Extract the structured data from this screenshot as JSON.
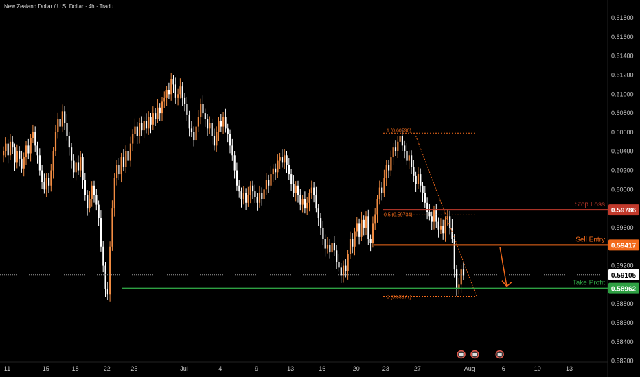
{
  "title": "New Zealand Dollar / U.S. Dollar · 4h · Tradu",
  "colors": {
    "background": "#000000",
    "candle_up": "#f28c42",
    "candle_down": "#ffffff",
    "stop_loss": "#c0392b",
    "sell_entry": "#f26a1b",
    "take_profit": "#2ea043",
    "fib": "#f26a1b",
    "current_price": "#9a9a9a"
  },
  "y_axis": {
    "ticks": [
      "0.61800",
      "0.61600",
      "0.61400",
      "0.61200",
      "0.61000",
      "0.60800",
      "0.60600",
      "0.60400",
      "0.60200",
      "0.60000",
      "0.59600",
      "0.59200",
      "0.58800",
      "0.58600",
      "0.58400",
      "0.58200"
    ],
    "tick_values": [
      0.618,
      0.616,
      0.614,
      0.612,
      0.61,
      0.608,
      0.606,
      0.604,
      0.602,
      0.6,
      0.596,
      0.592,
      0.588,
      0.586,
      0.584,
      0.582
    ],
    "range": [
      0.5819,
      0.6193
    ]
  },
  "x_axis": {
    "labels": [
      "11",
      "15",
      "18",
      "22",
      "25",
      "Jul",
      "4",
      "9",
      "13",
      "16",
      "20",
      "23",
      "27",
      "Aug",
      "6",
      "10",
      "13"
    ],
    "label_index": [
      2,
      19,
      32,
      46,
      58,
      80,
      96,
      112,
      127,
      141,
      156,
      169,
      183,
      206,
      221,
      236,
      250
    ]
  },
  "levels": {
    "stop_loss": {
      "label": "Stop Loss",
      "value": "0.59786",
      "price": 0.59786
    },
    "sell_entry": {
      "label": "Sell Entry",
      "value": "0.59417",
      "price": 0.59417
    },
    "take_profit": {
      "label": "Take Profit",
      "value": "0.58962",
      "price": 0.58962
    },
    "current_price": {
      "value": "0.59105",
      "price": 0.59105
    }
  },
  "fib": {
    "level_1": {
      "label": "1 (0.60590)",
      "price": 0.6059
    },
    "level_05": {
      "label": "0.5 (0.59734)",
      "price": 0.59734
    },
    "level_0": {
      "label": "0 (0.58877)",
      "price": 0.58877
    }
  },
  "events": {
    "icons": [
      "calendar-event-icon",
      "calendar-event-icon",
      "calendar-event-icon"
    ],
    "index": [
      202,
      208,
      219
    ]
  },
  "chart_data": {
    "type": "candlestick",
    "title": "New Zealand Dollar / U.S. Dollar · 4h · Tradu",
    "x_labels": [
      "11",
      "15",
      "18",
      "22",
      "25",
      "Jul",
      "4",
      "9",
      "13",
      "16",
      "20",
      "23",
      "27",
      "Aug",
      "6",
      "10",
      "13"
    ],
    "ylim": [
      0.5819,
      0.6193
    ],
    "grid": false,
    "close": [
      0.604,
      0.6048,
      0.6036,
      0.605,
      0.6044,
      0.6028,
      0.604,
      0.6032,
      0.6022,
      0.6034,
      0.6046,
      0.6038,
      0.6054,
      0.606,
      0.6046,
      0.6036,
      0.602,
      0.6008,
      0.6,
      0.6012,
      0.6004,
      0.602,
      0.604,
      0.606,
      0.6074,
      0.6066,
      0.6082,
      0.607,
      0.6056,
      0.6044,
      0.603,
      0.6018,
      0.6028,
      0.602,
      0.6034,
      0.601,
      0.5994,
      0.598,
      0.599,
      0.6004,
      0.5994,
      0.5984,
      0.597,
      0.594,
      0.592,
      0.5896,
      0.589,
      0.594,
      0.598,
      0.6012,
      0.6026,
      0.6016,
      0.6034,
      0.6024,
      0.604,
      0.603,
      0.6048,
      0.6058,
      0.6066,
      0.6056,
      0.607,
      0.6062,
      0.6072,
      0.6064,
      0.6076,
      0.6068,
      0.608,
      0.6074,
      0.6086,
      0.608,
      0.6092,
      0.6096,
      0.6104,
      0.61,
      0.6116,
      0.611,
      0.6096,
      0.61,
      0.6108,
      0.6096,
      0.609,
      0.6078,
      0.6064,
      0.606,
      0.6052,
      0.6066,
      0.6076,
      0.609,
      0.608,
      0.6074,
      0.6064,
      0.607,
      0.6056,
      0.6046,
      0.606,
      0.6072,
      0.6066,
      0.6076,
      0.6064,
      0.6058,
      0.6046,
      0.6036,
      0.602,
      0.6004,
      0.5998,
      0.599,
      0.5996,
      0.5986,
      0.5994,
      0.6004,
      0.5998,
      0.5992,
      0.5986,
      0.5996,
      0.599,
      0.6,
      0.601,
      0.6004,
      0.6016,
      0.6022,
      0.6018,
      0.603,
      0.6034,
      0.6028,
      0.6036,
      0.6026,
      0.6016,
      0.6006,
      0.5996,
      0.6004,
      0.5994,
      0.5984,
      0.599,
      0.598,
      0.5986,
      0.5996,
      0.6002,
      0.5994,
      0.598,
      0.597,
      0.596,
      0.5948,
      0.5938,
      0.5942,
      0.5934,
      0.5944,
      0.5936,
      0.5924,
      0.5918,
      0.591,
      0.592,
      0.5914,
      0.5932,
      0.5948,
      0.594,
      0.5956,
      0.5964,
      0.595,
      0.5968,
      0.596,
      0.5972,
      0.5948,
      0.5944,
      0.5964,
      0.5974,
      0.599,
      0.6002,
      0.5996,
      0.6012,
      0.6026,
      0.602,
      0.6034,
      0.6044,
      0.604,
      0.605,
      0.6056,
      0.6046,
      0.604,
      0.603,
      0.6036,
      0.6024,
      0.6014,
      0.6006,
      0.6016,
      0.6004,
      0.5996,
      0.5986,
      0.5976,
      0.5972,
      0.5966,
      0.5978,
      0.5966,
      0.5958,
      0.5962,
      0.5954,
      0.5968,
      0.5972,
      0.596,
      0.5948,
      0.5916,
      0.5896,
      0.59,
      0.5916,
      0.591
    ]
  }
}
